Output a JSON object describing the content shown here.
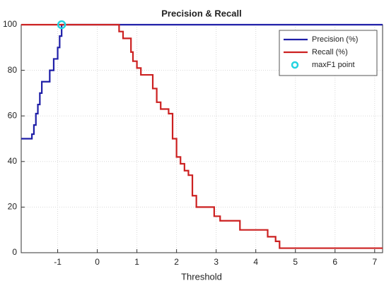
{
  "chart_data": {
    "type": "line",
    "title": "Precision & Recall",
    "xlabel": "Threshold",
    "xlim": [
      -1.92,
      7.2
    ],
    "ylim": [
      0,
      100
    ],
    "xticks": [
      -1,
      0,
      1,
      2,
      3,
      4,
      5,
      6,
      7
    ],
    "yticks": [
      0,
      20,
      40,
      60,
      80,
      100
    ],
    "grid": true,
    "legend": "northeast",
    "series": [
      {
        "name": "Precision (%)",
        "color": "#1f1fa8",
        "mode": "line",
        "x": [
          -1.92,
          -1.65,
          -1.65,
          -1.6,
          -1.6,
          -1.55,
          -1.55,
          -1.5,
          -1.5,
          -1.45,
          -1.45,
          -1.4,
          -1.4,
          -1.2,
          -1.2,
          -1.1,
          -1.1,
          -1.0,
          -1.0,
          -0.95,
          -0.95,
          -0.9,
          -0.9,
          7.2
        ],
        "values": [
          50,
          50,
          52,
          52,
          56,
          56,
          61,
          61,
          65,
          65,
          70,
          70,
          75,
          75,
          80,
          80,
          85,
          85,
          90,
          90,
          95,
          95,
          100,
          100
        ]
      },
      {
        "name": "Recall (%)",
        "color": "#cc2020",
        "mode": "line",
        "x": [
          -1.92,
          0.55,
          0.55,
          0.65,
          0.65,
          0.85,
          0.85,
          0.9,
          0.9,
          1.0,
          1.0,
          1.1,
          1.1,
          1.4,
          1.4,
          1.5,
          1.5,
          1.6,
          1.6,
          1.8,
          1.8,
          1.9,
          1.9,
          2.0,
          2.0,
          2.1,
          2.1,
          2.2,
          2.2,
          2.3,
          2.3,
          2.4,
          2.4,
          2.5,
          2.5,
          2.95,
          2.95,
          3.1,
          3.1,
          3.6,
          3.6,
          4.3,
          4.3,
          4.5,
          4.5,
          4.6,
          4.6,
          7.2
        ],
        "values": [
          100,
          100,
          97,
          97,
          94,
          94,
          88,
          88,
          84,
          84,
          81,
          81,
          78,
          78,
          72,
          72,
          66,
          66,
          63,
          63,
          61,
          61,
          50,
          50,
          42,
          42,
          39,
          39,
          36,
          36,
          34,
          34,
          25,
          25,
          20,
          20,
          16,
          16,
          14,
          14,
          10,
          10,
          7,
          7,
          5,
          5,
          2,
          2
        ]
      },
      {
        "name": "maxF1 point",
        "color": "#22d3e0",
        "mode": "marker",
        "x": [
          -0.9
        ],
        "values": [
          100
        ]
      }
    ]
  }
}
